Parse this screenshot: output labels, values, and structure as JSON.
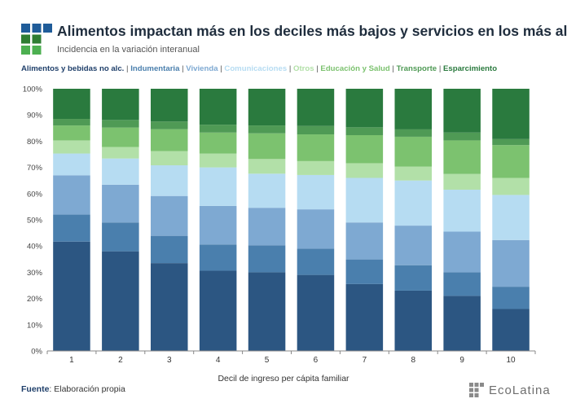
{
  "header": {
    "title": "Alimentos impactan más en los deciles más bajos y servicios en los más altos",
    "subtitle": "Incidencia en la variación interanual"
  },
  "footer": {
    "source_label": "Fuente",
    "source_text": ": Elaboración propia",
    "brand": "EcoLatina"
  },
  "colors": {
    "logo": [
      "#1f5c99",
      "#2e7d32",
      "#4caf50"
    ],
    "brand_mark": "#8a8a8a"
  },
  "chart_data": {
    "type": "bar",
    "stacked": true,
    "percent": true,
    "title": "Alimentos impactan más en los deciles más bajos y servicios en los más altos",
    "subtitle": "Incidencia en la variación interanual",
    "xlabel": "Decil de ingreso per cápita familiar",
    "ylabel": "",
    "ylim": [
      0,
      100
    ],
    "yticks": [
      "0%",
      "10%",
      "20%",
      "30%",
      "40%",
      "50%",
      "60%",
      "70%",
      "80%",
      "90%",
      "100%"
    ],
    "grid": false,
    "legend_position": "top",
    "categories": [
      "1",
      "2",
      "3",
      "4",
      "5",
      "6",
      "7",
      "8",
      "9",
      "10"
    ],
    "series": [
      {
        "name": "Alimentos y bebidas no alc.",
        "color": "#2c5682",
        "values": [
          41.7,
          38.0,
          33.5,
          30.6,
          30.0,
          29.0,
          25.5,
          23.0,
          21.0,
          16.0
        ]
      },
      {
        "name": "Indumentaria",
        "color": "#4a7fad",
        "values": [
          10.3,
          11.0,
          10.4,
          10.0,
          10.3,
          10.0,
          9.4,
          9.7,
          9.0,
          8.5
        ]
      },
      {
        "name": "Vivienda",
        "color": "#7ea9d2",
        "values": [
          15.0,
          14.4,
          15.2,
          14.7,
          14.3,
          15.0,
          14.1,
          15.1,
          15.5,
          17.8
        ]
      },
      {
        "name": "Comunicaciones",
        "color": "#b6dcf2",
        "values": [
          8.3,
          10.0,
          11.7,
          14.7,
          13.0,
          13.1,
          17.0,
          17.2,
          16.0,
          17.2
        ]
      },
      {
        "name": "Otros",
        "color": "#b2e0a8",
        "values": [
          5.0,
          4.4,
          5.4,
          5.3,
          5.6,
          5.3,
          5.6,
          5.3,
          6.0,
          6.5
        ]
      },
      {
        "name": "Educación y Salud",
        "color": "#7cc26f",
        "values": [
          5.7,
          7.4,
          8.4,
          8.0,
          9.8,
          10.2,
          10.7,
          11.4,
          12.8,
          12.5
        ]
      },
      {
        "name": "Transporte",
        "color": "#4f9a55",
        "values": [
          2.5,
          2.9,
          2.9,
          3.0,
          3.0,
          3.2,
          3.0,
          2.8,
          3.0,
          2.3
        ]
      },
      {
        "name": "Esparcimiento",
        "color": "#2a7a3e",
        "values": [
          11.5,
          11.9,
          12.5,
          13.7,
          14.0,
          14.2,
          14.7,
          15.5,
          16.7,
          19.2
        ]
      }
    ]
  }
}
